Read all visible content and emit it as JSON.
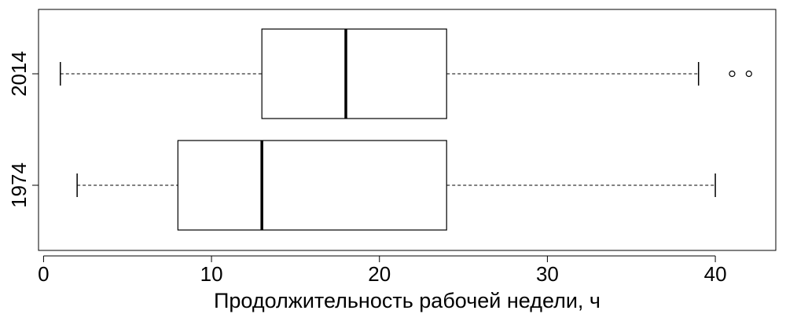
{
  "chart_data": {
    "type": "boxplot",
    "orientation": "horizontal",
    "title": "",
    "xlabel": "Продолжительность рабочей недели, ч",
    "ylabel": "",
    "xlim": [
      -0.3,
      43.6
    ],
    "xticks": [
      0,
      10,
      20,
      30,
      40
    ],
    "grid": false,
    "categories": [
      "2014",
      "1974"
    ],
    "series": [
      {
        "category": "2014",
        "whisker_low": 1,
        "q1": 13,
        "median": 18,
        "q3": 24,
        "whisker_high": 39,
        "outliers": [
          41,
          42
        ]
      },
      {
        "category": "1974",
        "whisker_low": 2,
        "q1": 8,
        "median": 13,
        "q3": 24,
        "whisker_high": 40,
        "outliers": []
      }
    ],
    "colors": {
      "box_stroke": "#000000",
      "box_fill": "#ffffff",
      "median": "#000000"
    }
  }
}
